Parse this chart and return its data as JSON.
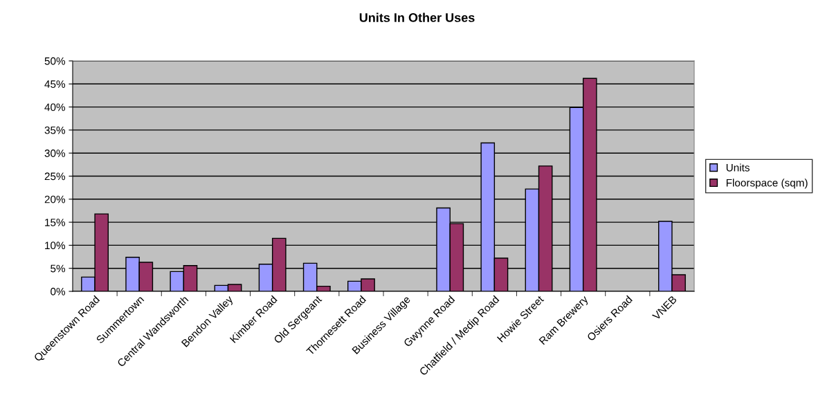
{
  "chart_data": {
    "type": "bar",
    "title": "Units In Other Uses",
    "categories": [
      "Queenstown Road",
      "Summertown",
      "Central Wandsworth",
      "Bendon Valley",
      "Kimber Road",
      "Old Sergeant",
      "Thornesett Road",
      "Business Village",
      "Gwynne Road",
      "Chatfield / Medip Road",
      "Howie Street",
      "Ram Brewery",
      "Osiers Road",
      "VNEB"
    ],
    "series": [
      {
        "name": "Units",
        "color": "#9999ff",
        "values": [
          3.1,
          7.4,
          4.3,
          1.3,
          5.9,
          6.1,
          2.2,
          null,
          18.1,
          32.2,
          22.2,
          39.9,
          null,
          15.2
        ]
      },
      {
        "name": "Floorspace (sqm)",
        "color": "#993366",
        "values": [
          16.8,
          6.3,
          5.6,
          1.5,
          11.5,
          1.1,
          2.7,
          null,
          14.7,
          7.2,
          27.2,
          46.2,
          null,
          3.6
        ]
      }
    ],
    "ylim": [
      0,
      50
    ],
    "yticks": [
      {
        "value": 0,
        "label": "0%"
      },
      {
        "value": 5,
        "label": "5%"
      },
      {
        "value": 10,
        "label": "10%"
      },
      {
        "value": 15,
        "label": "15%"
      },
      {
        "value": 20,
        "label": "20%"
      },
      {
        "value": 25,
        "label": "25%"
      },
      {
        "value": 30,
        "label": "30%"
      },
      {
        "value": 35,
        "label": "35%"
      },
      {
        "value": 40,
        "label": "40%"
      },
      {
        "value": 45,
        "label": "45%"
      },
      {
        "value": 50,
        "label": "50%"
      }
    ],
    "grid": "y",
    "legend": "right"
  }
}
